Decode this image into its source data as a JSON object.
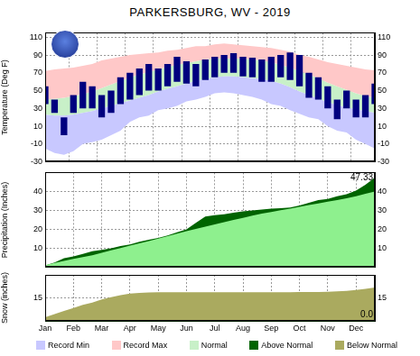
{
  "chart_data": [
    {
      "type": "area",
      "title": "PARKERSBURG, WV - 2019",
      "y_label": "Temperature (Deg F)",
      "categories": [
        "Jan",
        null,
        null,
        "Feb",
        null,
        null,
        "Mar",
        null,
        null,
        "Apr",
        null,
        null,
        "May",
        null,
        null,
        "Jun",
        null,
        null,
        "Jul",
        null,
        null,
        "Aug",
        null,
        null,
        "Sep",
        null,
        null,
        "Oct",
        null,
        null,
        "Nov",
        null,
        null,
        "Dec",
        null,
        null
      ],
      "ylim": [
        -30,
        115
      ],
      "yticks": [
        -30,
        -10,
        10,
        30,
        50,
        70,
        90,
        110
      ],
      "grid": true,
      "tick_labels": "y",
      "series": [
        {
          "name": "Record Min",
          "type": "area",
          "color": "#c8c8ff",
          "values": [
            -15,
            -20,
            -22,
            -18,
            -10,
            -8,
            -5,
            0,
            5,
            15,
            20,
            22,
            28,
            30,
            33,
            38,
            40,
            43,
            47,
            48,
            47,
            45,
            43,
            40,
            35,
            33,
            28,
            24,
            20,
            18,
            10,
            5,
            3,
            -5,
            -10,
            -15
          ]
        },
        {
          "name": "Record Max",
          "type": "area",
          "color": "#ffc8c8",
          "values": [
            72,
            74,
            75,
            76,
            78,
            80,
            84,
            86,
            88,
            90,
            91,
            92,
            93,
            95,
            96,
            98,
            100,
            100,
            102,
            103,
            102,
            101,
            100,
            99,
            98,
            96,
            94,
            90,
            88,
            85,
            82,
            80,
            78,
            76,
            74,
            73
          ]
        },
        {
          "name": "Normal",
          "type": "area",
          "color": "#c8f0c8",
          "values": [
            [
              23,
              40
            ],
            [
              22,
              41
            ],
            [
              22,
              42
            ],
            [
              23,
              44
            ],
            [
              25,
              46
            ],
            [
              27,
              49
            ],
            [
              30,
              53
            ],
            [
              33,
              57
            ],
            [
              36,
              61
            ],
            [
              39,
              65
            ],
            [
              42,
              68
            ],
            [
              45,
              71
            ],
            [
              49,
              74
            ],
            [
              52,
              77
            ],
            [
              55,
              79
            ],
            [
              58,
              81
            ],
            [
              61,
              83
            ],
            [
              63,
              85
            ],
            [
              65,
              86
            ],
            [
              66,
              86
            ],
            [
              66,
              86
            ],
            [
              65,
              86
            ],
            [
              64,
              85
            ],
            [
              63,
              84
            ],
            [
              61,
              82
            ],
            [
              58,
              79
            ],
            [
              54,
              76
            ],
            [
              49,
              72
            ],
            [
              45,
              68
            ],
            [
              41,
              64
            ],
            [
              37,
              59
            ],
            [
              34,
              55
            ],
            [
              31,
              51
            ],
            [
              29,
              47
            ],
            [
              27,
              44
            ],
            [
              25,
              42
            ]
          ]
        },
        {
          "type": "bar",
          "color": "#00007f",
          "values": [
            [
              35,
              55
            ],
            [
              25,
              40
            ],
            [
              0,
              20
            ],
            [
              25,
              45
            ],
            [
              30,
              60
            ],
            [
              30,
              55
            ],
            [
              20,
              45
            ],
            [
              25,
              50
            ],
            [
              35,
              65
            ],
            [
              40,
              70
            ],
            [
              45,
              75
            ],
            [
              50,
              80
            ],
            [
              50,
              75
            ],
            [
              55,
              80
            ],
            [
              60,
              88
            ],
            [
              58,
              83
            ],
            [
              55,
              80
            ],
            [
              62,
              85
            ],
            [
              65,
              88
            ],
            [
              70,
              90
            ],
            [
              70,
              92
            ],
            [
              66,
              88
            ],
            [
              65,
              87
            ],
            [
              60,
              85
            ],
            [
              60,
              88
            ],
            [
              65,
              90
            ],
            [
              62,
              93
            ],
            [
              55,
              90
            ],
            [
              42,
              70
            ],
            [
              40,
              65
            ],
            [
              30,
              55
            ],
            [
              18,
              40
            ],
            [
              30,
              50
            ],
            [
              20,
              40
            ],
            [
              20,
              45
            ],
            [
              35,
              58
            ]
          ]
        }
      ]
    },
    {
      "type": "area",
      "y_label": "Precipitation (Inches)",
      "categories": [
        "Jan",
        null,
        null,
        "Feb",
        null,
        null,
        "Mar",
        null,
        null,
        "Apr",
        null,
        null,
        "May",
        null,
        null,
        "Jun",
        null,
        null,
        "Jul",
        null,
        null,
        "Aug",
        null,
        null,
        "Sep",
        null,
        null,
        "Oct",
        null,
        null,
        "Nov",
        null,
        null,
        "Dec",
        null,
        null
      ],
      "ylim": [
        0,
        50
      ],
      "yticks": [
        10,
        20,
        30,
        40
      ],
      "grid": true,
      "tick_labels": "y",
      "annotation": "47.33",
      "series": [
        {
          "name": "Normal",
          "type": "area",
          "color": "#8ef08e",
          "values": [
            1.1,
            2.3,
            3.4,
            4.4,
            5.4,
            6.4,
            7.6,
            8.9,
            10.2,
            11.4,
            12.6,
            13.8,
            15.1,
            16.4,
            17.7,
            19.0,
            20.2,
            21.4,
            22.6,
            23.8,
            25.0,
            26.1,
            27.2,
            28.3,
            29.2,
            30.1,
            31.0,
            31.9,
            32.8,
            33.7,
            34.6,
            35.5,
            36.4,
            37.5,
            38.8,
            40.0
          ]
        },
        {
          "name": "Above Normal",
          "type": "area",
          "color": "#006400",
          "values": [
            1.0,
            2.5,
            4.8,
            5.8,
            7.0,
            8.5,
            9.2,
            10.0,
            11.2,
            12.0,
            13.5,
            14.5,
            15.5,
            16.8,
            18.5,
            20.0,
            23.5,
            26.8,
            27.5,
            28.0,
            28.8,
            29.5,
            30.0,
            30.5,
            31.0,
            31.2,
            31.5,
            32.6,
            34.0,
            35.5,
            36.0,
            37.5,
            38.5,
            40.5,
            43.5,
            47.33
          ]
        }
      ]
    },
    {
      "type": "area",
      "y_label": "Snow (inches)",
      "categories": [
        "Jan",
        null,
        null,
        "Feb",
        null,
        null,
        "Mar",
        null,
        null,
        "Apr",
        null,
        null,
        "May",
        null,
        null,
        "Jun",
        null,
        null,
        "Jul",
        null,
        null,
        "Aug",
        null,
        null,
        "Sep",
        null,
        null,
        "Oct",
        null,
        null,
        "Nov",
        null,
        null,
        "Dec",
        null,
        null
      ],
      "ylim": [
        0,
        30
      ],
      "yticks": [
        15
      ],
      "grid": true,
      "annotation": "0.0",
      "series": [
        {
          "name": "Below Normal",
          "type": "area",
          "color": "#aaaa5f",
          "values": [
            2.5,
            4.5,
            6.5,
            8.5,
            10.5,
            12.0,
            14.0,
            15.5,
            16.8,
            17.8,
            18.3,
            18.6,
            18.7,
            18.7,
            18.7,
            18.7,
            18.7,
            18.7,
            18.7,
            18.7,
            18.7,
            18.7,
            18.7,
            18.7,
            18.7,
            18.7,
            18.7,
            18.8,
            18.8,
            18.9,
            19.0,
            19.3,
            19.6,
            20.2,
            20.9,
            21.8
          ]
        },
        {
          "type": "line",
          "color": "#006400",
          "values": [
            0,
            0,
            0,
            0,
            0,
            0,
            0,
            0,
            0,
            0,
            0,
            0,
            0,
            0,
            0,
            0,
            0,
            0,
            0,
            0,
            0,
            0,
            0,
            0,
            0,
            0,
            0,
            0,
            0,
            0,
            0,
            0,
            0,
            0,
            0,
            0
          ]
        }
      ]
    }
  ]
}
